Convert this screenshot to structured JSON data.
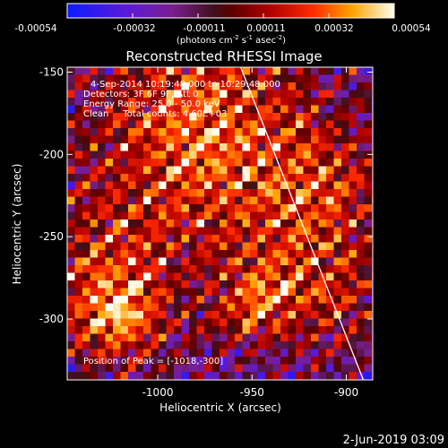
{
  "colorbar": {
    "tick_labels": [
      "-0.00054",
      "-0.00032",
      "-0.00011",
      "0.00011",
      "0.00032",
      "0.00054"
    ],
    "units": "(photons cm",
    "units_exp1": "-2",
    "units_mid": " s",
    "units_exp2": "-1",
    "units_tail": " asec",
    "units_exp3": "-2",
    "units_close": ")"
  },
  "image": {
    "title": "Reconstructed RHESSI Image",
    "info_line1": "4-Sep-2014 10:19:48.000 to 10:29:48.000",
    "info_line2": "Detectors: 3F 6F 9F, Att 0",
    "info_line3": "Energy Range: 25.0 - 50.0 keV",
    "info_line4": "Clean     Total counts: 4.60E+03",
    "peak_text": "Position of Peak = [-1018,-300]",
    "xlabel": "Heliocentric X (arcsec)",
    "ylabel": "Heliocentric Y (arcsec)",
    "x_ticks": [
      "-1000",
      "-950",
      "-900"
    ],
    "x_tick_values": [
      -1000,
      -950,
      -900
    ],
    "y_ticks": [
      "-150",
      "-200",
      "-250",
      "-300"
    ],
    "y_tick_values": [
      -150,
      -200,
      -250,
      -300
    ],
    "xlim": [
      -1048,
      -886
    ],
    "ylim": [
      -337,
      -147
    ],
    "limb_line": [
      [
        -956,
        -147
      ],
      [
        -891,
        -337
      ]
    ],
    "peak": [
      -1018,
      -300
    ]
  },
  "footer": {
    "date_stamp": "2-Jun-2019 03:09"
  }
}
